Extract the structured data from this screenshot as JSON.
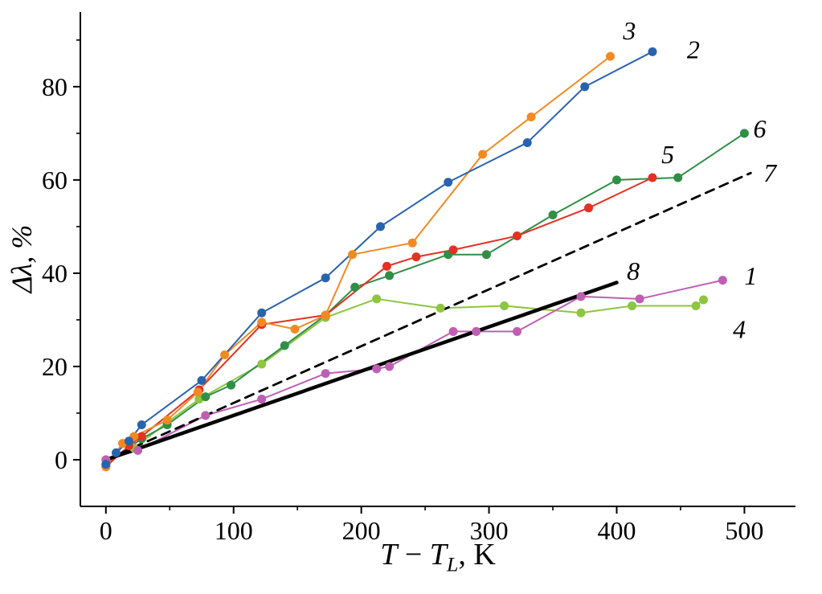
{
  "chart_data": {
    "type": "line",
    "title": "",
    "xlabel": "T − T_L, K",
    "xlabel_parts": {
      "t1": "T",
      "minus": " − ",
      "t2": "T",
      "sub": "L",
      "tail": ", K"
    },
    "ylabel": "Δλ, %",
    "xlim": [
      -20,
      540
    ],
    "ylim": [
      -10,
      96
    ],
    "grid": false,
    "legend": "inline-numeric-labels",
    "x_ticks": [
      0,
      100,
      200,
      300,
      400,
      500
    ],
    "y_ticks": [
      0,
      20,
      40,
      60,
      80
    ],
    "x_minor_ticks": [
      50,
      150,
      250,
      350,
      450
    ],
    "y_minor_ticks": [
      10,
      30,
      50,
      70,
      90
    ],
    "axis_color": "#000000",
    "series": [
      {
        "name": "4",
        "color": "#8dc63f",
        "line_style": "solid",
        "line_width": 2,
        "markers": true,
        "label": {
          "text": "4",
          "x": 496,
          "y": 28
        },
        "points": [
          [
            0,
            0
          ],
          [
            22,
            2.5
          ],
          [
            48,
            8
          ],
          [
            73,
            13
          ],
          [
            122,
            20.5
          ],
          [
            172,
            30.5
          ],
          [
            212,
            34.5
          ],
          [
            262,
            32.5
          ],
          [
            312,
            33
          ],
          [
            372,
            31.5
          ],
          [
            412,
            33
          ],
          [
            462,
            33
          ],
          [
            468,
            34.3
          ]
        ]
      },
      {
        "name": "1",
        "color": "#bf5fb4",
        "line_style": "solid",
        "line_width": 2,
        "markers": true,
        "label": {
          "text": "1",
          "x": 505,
          "y": 39.5
        },
        "points": [
          [
            0,
            0
          ],
          [
            25,
            2
          ],
          [
            78,
            9.5
          ],
          [
            122,
            13
          ],
          [
            172,
            18.5
          ],
          [
            212,
            19.5
          ],
          [
            222,
            20
          ],
          [
            272,
            27.5
          ],
          [
            290,
            27.5
          ],
          [
            322,
            27.5
          ],
          [
            372,
            35
          ],
          [
            418,
            34.5
          ],
          [
            483,
            38.5
          ]
        ]
      },
      {
        "name": "6",
        "color": "#2f8f46",
        "line_style": "solid",
        "line_width": 2,
        "markers": true,
        "label": {
          "text": "6",
          "x": 512,
          "y": 71
        },
        "points": [
          [
            0,
            -1
          ],
          [
            28,
            4.5
          ],
          [
            48,
            7.5
          ],
          [
            78,
            13.5
          ],
          [
            98,
            16
          ],
          [
            140,
            24.5
          ],
          [
            172,
            31
          ],
          [
            195,
            37
          ],
          [
            222,
            39.5
          ],
          [
            268,
            44
          ],
          [
            298,
            44
          ],
          [
            350,
            52.5
          ],
          [
            400,
            60
          ],
          [
            448,
            60.5
          ],
          [
            500,
            70
          ]
        ]
      },
      {
        "name": "5",
        "color": "#e33122",
        "line_style": "solid",
        "line_width": 2,
        "markers": true,
        "label": {
          "text": "5",
          "x": 440,
          "y": 65.5
        },
        "points": [
          [
            0,
            -1.5
          ],
          [
            18,
            3
          ],
          [
            28,
            5
          ],
          [
            73,
            15
          ],
          [
            122,
            29
          ],
          [
            172,
            31
          ],
          [
            220,
            41.5
          ],
          [
            243,
            43.5
          ],
          [
            272,
            45
          ],
          [
            322,
            48
          ],
          [
            378,
            54
          ],
          [
            428,
            60.5
          ]
        ]
      },
      {
        "name": "3",
        "color": "#f28a22",
        "line_style": "solid",
        "line_width": 2,
        "markers": true,
        "label": {
          "text": "3",
          "x": 410,
          "y": 92
        },
        "points": [
          [
            0,
            -1.5
          ],
          [
            13,
            3.5
          ],
          [
            22,
            5
          ],
          [
            48,
            8.5
          ],
          [
            72,
            14.5
          ],
          [
            93,
            22.5
          ],
          [
            122,
            29.5
          ],
          [
            148,
            28
          ],
          [
            172,
            31
          ],
          [
            193,
            44
          ],
          [
            240,
            46.5
          ],
          [
            295,
            65.5
          ],
          [
            333,
            73.5
          ],
          [
            395,
            86.5
          ]
        ]
      },
      {
        "name": "2",
        "color": "#2a63ad",
        "line_style": "solid",
        "line_width": 2,
        "markers": true,
        "label": {
          "text": "2",
          "x": 460,
          "y": 88
        },
        "points": [
          [
            0,
            -1
          ],
          [
            8,
            1.5
          ],
          [
            18,
            4
          ],
          [
            28,
            7.5
          ],
          [
            75,
            17
          ],
          [
            122,
            31.5
          ],
          [
            172,
            39
          ],
          [
            215,
            50
          ],
          [
            268,
            59.5
          ],
          [
            330,
            68
          ],
          [
            375,
            80
          ],
          [
            428,
            87.5
          ]
        ]
      },
      {
        "name": "7",
        "color": "#000000",
        "line_style": "dashed",
        "line_width": 2.8,
        "markers": false,
        "label": {
          "text": "7",
          "x": 520,
          "y": 61.5
        },
        "points": [
          [
            0,
            0
          ],
          [
            505,
            61.5
          ]
        ]
      },
      {
        "name": "8",
        "color": "#000000",
        "line_style": "solid",
        "line_width": 4.5,
        "markers": false,
        "label": {
          "text": "8",
          "x": 413,
          "y": 40.5
        },
        "points": [
          [
            0,
            0
          ],
          [
            400,
            38
          ]
        ]
      }
    ]
  }
}
